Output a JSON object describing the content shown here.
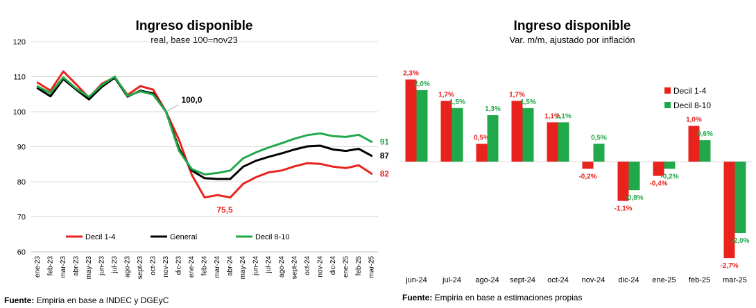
{
  "left": {
    "title": "Ingreso disponible",
    "subtitle": "real, base 100=nov23",
    "source_label": "Fuente:",
    "source_text": " Empiria en base a INDEC y DGEyC"
  },
  "right": {
    "title": "Ingreso disponible",
    "subtitle": "Var. m/m, ajustado por inflación",
    "source_label": "Fuente:",
    "source_text": " Empiria en base a estimaciones propias"
  },
  "colors": {
    "red": "#e8231d",
    "black": "#000000",
    "green": "#20a84a"
  },
  "chart_data": [
    {
      "type": "line",
      "title": "Ingreso disponible",
      "subtitle": "real, base 100=nov23",
      "x": [
        "ene-23",
        "feb-23",
        "mar-23",
        "abr-23",
        "may-23",
        "jun-23",
        "jul-23",
        "ago-23",
        "sept-23",
        "oct-23",
        "nov-23",
        "dic-23",
        "ene-24",
        "feb-24",
        "mar-24",
        "abr-24",
        "may-24",
        "jun-24",
        "jul-24",
        "ago-24",
        "sept-24",
        "oct-24",
        "nov-24",
        "dic-24",
        "ene-25",
        "feb-25",
        "mar-25"
      ],
      "ylim": [
        60,
        120
      ],
      "yticks": [
        60,
        70,
        80,
        90,
        100,
        110,
        120
      ],
      "grid": "horizontal",
      "legend": "bottom-left",
      "series": [
        {
          "name": "Decil 1-4",
          "color": "#e8231d",
          "values": [
            108.3,
            106,
            111.5,
            107.8,
            104,
            108,
            109.8,
            104.8,
            107.3,
            106.3,
            100,
            92,
            82,
            75.5,
            76.2,
            75.5,
            79.4,
            81.3,
            82.7,
            83.2,
            84.4,
            85.3,
            85.1,
            84.3,
            83.9,
            84.7,
            82.3
          ]
        },
        {
          "name": "General",
          "color": "#000000",
          "values": [
            106.7,
            104.4,
            109.3,
            106.3,
            103.5,
            107.1,
            109.7,
            104.3,
            106,
            105.2,
            100,
            89.5,
            83.2,
            81,
            80.8,
            80.8,
            84.3,
            86,
            87.1,
            88.1,
            89.2,
            90.1,
            90.3,
            89.2,
            88.8,
            89.4,
            87.4
          ]
        },
        {
          "name": "Decil 8-10",
          "color": "#20a84a",
          "values": [
            107.2,
            105.3,
            109.8,
            106.6,
            104.2,
            107.6,
            110,
            104.5,
            105.8,
            104.9,
            100,
            88.9,
            83.6,
            82.1,
            82.5,
            83.2,
            86.7,
            88.4,
            89.8,
            91,
            92.3,
            93.3,
            93.8,
            93,
            92.8,
            93.4,
            91.4
          ]
        }
      ],
      "annotations": [
        {
          "label": "100,0",
          "x": "nov-23",
          "y": 100,
          "color": "#000000"
        },
        {
          "label": "75,5",
          "x": "abr-24",
          "y": 75.5,
          "color": "#e8231d"
        },
        {
          "label": "91,4",
          "x": "mar-25",
          "y": 91.4,
          "color": "#20a84a"
        },
        {
          "label": "87,4",
          "x": "mar-25",
          "y": 87.4,
          "color": "#000000"
        },
        {
          "label": "82,3",
          "x": "mar-25",
          "y": 82.3,
          "color": "#e8231d"
        }
      ]
    },
    {
      "type": "bar",
      "title": "Ingreso disponible",
      "subtitle": "Var. m/m, ajustado por inflación",
      "categories": [
        "jun-24",
        "jul-24",
        "ago-24",
        "sept-24",
        "oct-24",
        "nov-24",
        "dic-24",
        "ene-25",
        "feb-25",
        "mar-25"
      ],
      "ylim": [
        -2.8,
        2.5
      ],
      "legend": "right",
      "series": [
        {
          "name": "Decil 1-4",
          "color": "#e8231d",
          "values": [
            2.3,
            1.7,
            0.5,
            1.7,
            1.1,
            -0.2,
            -1.1,
            -0.4,
            1.0,
            -2.7
          ],
          "labels": [
            "2,3%",
            "1,7%",
            "0,5%",
            "1,7%",
            "1,1%",
            "-0,2%",
            "-1,1%",
            "-0,4%",
            "1,0%",
            "-2,7%"
          ]
        },
        {
          "name": "Decil 8-10",
          "color": "#20a84a",
          "values": [
            2.0,
            1.5,
            1.3,
            1.5,
            1.1,
            0.5,
            -0.8,
            -0.2,
            0.6,
            -2.0
          ],
          "labels": [
            "2,0%",
            "1,5%",
            "1,3%",
            "1,5%",
            "1,1%",
            "0,5%",
            "-0,8%",
            "-0,2%",
            "0,6%",
            "-2,0%"
          ]
        }
      ]
    }
  ]
}
